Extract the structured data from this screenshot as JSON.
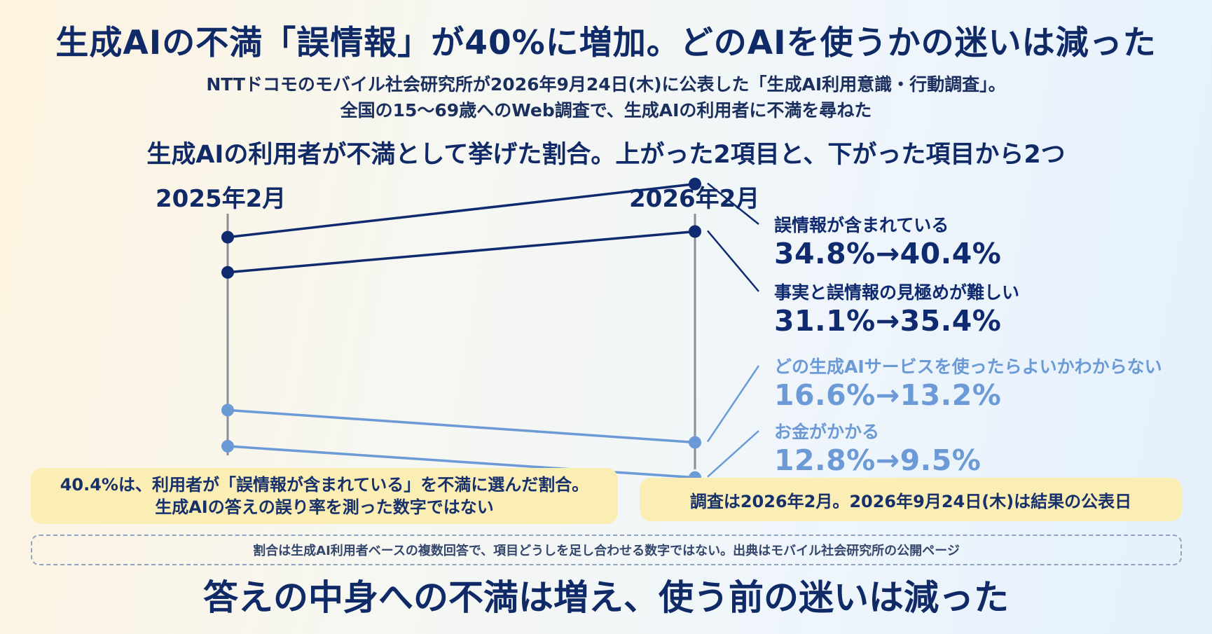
{
  "title": "生成AIの不満「誤情報」が40%に増加。どのAIを使うかの迷いは減った",
  "subtitle": [
    "NTTドコモのモバイル社会研究所が2026年9月24日(木)に公表した「生成AI利用意識・行動調査」。",
    "全国の15〜69歳へのWeb調査で、生成AIの利用者に不満を尋ねた"
  ],
  "chart_data": {
    "type": "line",
    "title": "生成AIの利用者が不満として挙げた割合。上がった2項目と、下がった項目から2つ",
    "x": [
      "2025年2月",
      "2026年2月"
    ],
    "series": [
      {
        "name": "誤情報が含まれている",
        "values": [
          34.8,
          40.4
        ],
        "color": "#0f2a6e",
        "value_text": "34.8%→40.4%"
      },
      {
        "name": "事実と誤情報の見極めが難しい",
        "values": [
          31.1,
          35.4
        ],
        "color": "#0f2a6e",
        "value_text": "31.1%→35.4%"
      },
      {
        "name": "どの生成AIサービスを使ったらよいかわからない",
        "values": [
          16.6,
          13.2
        ],
        "color": "#6b9ad6",
        "value_text": "16.6%→13.2%"
      },
      {
        "name": "お金がかかる",
        "values": [
          12.8,
          9.5
        ],
        "color": "#6b9ad6",
        "value_text": "12.8%→9.5%"
      }
    ],
    "axis_color": "#8a8f99"
  },
  "notes": {
    "left": [
      "40.4%は、利用者が「誤情報が含まれている」を不満に選んだ割合。",
      "生成AIの答えの誤り率を測った数字ではない"
    ],
    "right": "調査は2026年2月。2026年9月24日(木)は結果の公表日"
  },
  "source": "割合は生成AI利用者ベースの複数回答で、項目どうしを足し合わせる数字ではない。出典はモバイル社会研究所の公開ページ",
  "conclusion": "答えの中身への不満は増え、使う前の迷いは減った"
}
